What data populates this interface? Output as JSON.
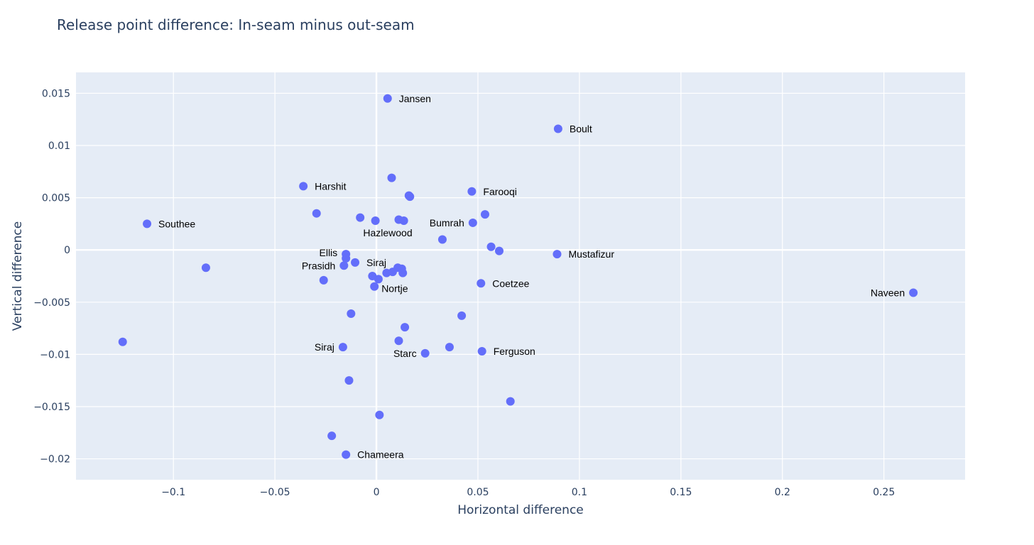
{
  "chart_data": {
    "type": "scatter",
    "title": "Release point difference: In-seam minus out-seam",
    "xlabel": "Horizontal difference",
    "ylabel": "Vertical difference",
    "xlim": [
      -0.148,
      0.29
    ],
    "ylim": [
      -0.022,
      0.017
    ],
    "x_ticks": [
      -0.1,
      -0.05,
      0,
      0.05,
      0.1,
      0.15,
      0.2,
      0.25
    ],
    "x_tick_labels": [
      "−0.1",
      "−0.05",
      "0",
      "0.05",
      "0.1",
      "0.15",
      "0.2",
      "0.25"
    ],
    "y_ticks": [
      0.015,
      0.01,
      0.005,
      0,
      -0.005,
      -0.01,
      -0.015,
      -0.02
    ],
    "y_tick_labels": [
      "0.015",
      "0.01",
      "0.005",
      "0",
      "−0.005",
      "−0.01",
      "−0.015",
      "−0.02"
    ],
    "grid": true,
    "colors": {
      "marker": "#636efa",
      "plot_bg": "#e5ecf6",
      "grid": "#ffffff",
      "text": "#2a3f5f"
    },
    "points": [
      {
        "x": 0.0055,
        "y": 0.0145,
        "label": "Jansen",
        "label_side": "right"
      },
      {
        "x": 0.0895,
        "y": 0.0116,
        "label": "Boult",
        "label_side": "right"
      },
      {
        "x": 0.0075,
        "y": 0.0069,
        "label": "",
        "label_side": "right"
      },
      {
        "x": -0.036,
        "y": 0.0061,
        "label": "Harshit",
        "label_side": "right"
      },
      {
        "x": 0.047,
        "y": 0.0056,
        "label": "Farooqi",
        "label_side": "right"
      },
      {
        "x": 0.016,
        "y": 0.0052,
        "label": "",
        "label_side": "right"
      },
      {
        "x": 0.0165,
        "y": 0.0051,
        "label": "",
        "label_side": "right"
      },
      {
        "x": -0.0295,
        "y": 0.0035,
        "label": "",
        "label_side": "right"
      },
      {
        "x": 0.0535,
        "y": 0.0034,
        "label": "",
        "label_side": "right"
      },
      {
        "x": -0.008,
        "y": 0.0031,
        "label": "",
        "label_side": "right"
      },
      {
        "x": -0.0005,
        "y": 0.0028,
        "label": "",
        "label_side": "right"
      },
      {
        "x": 0.011,
        "y": 0.0029,
        "label": "",
        "label_side": "right"
      },
      {
        "x": 0.0135,
        "y": 0.0028,
        "label": "Hazlewood",
        "label_side": "below-left"
      },
      {
        "x": -0.113,
        "y": 0.0025,
        "label": "Southee",
        "label_side": "right"
      },
      {
        "x": 0.0475,
        "y": 0.0026,
        "label": "Bumrah",
        "label_side": "left"
      },
      {
        "x": 0.0325,
        "y": 0.001,
        "label": "",
        "label_side": "right"
      },
      {
        "x": 0.0565,
        "y": 0.0003,
        "label": "",
        "label_side": "right"
      },
      {
        "x": 0.0605,
        "y": -0.0001,
        "label": "",
        "label_side": "right"
      },
      {
        "x": 0.089,
        "y": -0.0004,
        "label": "Mustafizur",
        "label_side": "right"
      },
      {
        "x": -0.015,
        "y": -0.0004,
        "label": "Ellis",
        "label_side": "left-up"
      },
      {
        "x": -0.015,
        "y": -0.0008,
        "label": "",
        "label_side": "right"
      },
      {
        "x": -0.0105,
        "y": -0.0012,
        "label": "Siraj",
        "label_side": "right"
      },
      {
        "x": -0.016,
        "y": -0.0015,
        "label": "Prasidh",
        "label_side": "left"
      },
      {
        "x": -0.084,
        "y": -0.0017,
        "label": "",
        "label_side": "right"
      },
      {
        "x": 0.0105,
        "y": -0.0017,
        "label": "",
        "label_side": "right"
      },
      {
        "x": 0.0125,
        "y": -0.0018,
        "label": "",
        "label_side": "right"
      },
      {
        "x": 0.005,
        "y": -0.0022,
        "label": "",
        "label_side": "right"
      },
      {
        "x": 0.008,
        "y": -0.0021,
        "label": "",
        "label_side": "right"
      },
      {
        "x": 0.013,
        "y": -0.0022,
        "label": "",
        "label_side": "right"
      },
      {
        "x": -0.002,
        "y": -0.0025,
        "label": "",
        "label_side": "right"
      },
      {
        "x": 0.001,
        "y": -0.0028,
        "label": "",
        "label_side": "right"
      },
      {
        "x": -0.026,
        "y": -0.0029,
        "label": "",
        "label_side": "right"
      },
      {
        "x": 0.0515,
        "y": -0.0032,
        "label": "Coetzee",
        "label_side": "right"
      },
      {
        "x": -0.001,
        "y": -0.0035,
        "label": "Nortje",
        "label_side": "below-right"
      },
      {
        "x": 0.2645,
        "y": -0.0041,
        "label": "Naveen",
        "label_side": "left"
      },
      {
        "x": -0.0125,
        "y": -0.0061,
        "label": "",
        "label_side": "right"
      },
      {
        "x": 0.042,
        "y": -0.0063,
        "label": "",
        "label_side": "right"
      },
      {
        "x": 0.014,
        "y": -0.0074,
        "label": "",
        "label_side": "right"
      },
      {
        "x": 0.011,
        "y": -0.0087,
        "label": "",
        "label_side": "right"
      },
      {
        "x": -0.125,
        "y": -0.0088,
        "label": "",
        "label_side": "right"
      },
      {
        "x": -0.0165,
        "y": -0.0093,
        "label": "Siraj",
        "label_side": "left"
      },
      {
        "x": 0.036,
        "y": -0.0093,
        "label": "",
        "label_side": "right"
      },
      {
        "x": 0.052,
        "y": -0.0097,
        "label": "Ferguson",
        "label_side": "right"
      },
      {
        "x": 0.024,
        "y": -0.0099,
        "label": "Starc",
        "label_side": "left"
      },
      {
        "x": -0.0135,
        "y": -0.0125,
        "label": "",
        "label_side": "right"
      },
      {
        "x": 0.066,
        "y": -0.0145,
        "label": "",
        "label_side": "right"
      },
      {
        "x": 0.0015,
        "y": -0.0158,
        "label": "",
        "label_side": "right"
      },
      {
        "x": -0.022,
        "y": -0.0178,
        "label": "",
        "label_side": "right"
      },
      {
        "x": -0.015,
        "y": -0.0196,
        "label": "Chameera",
        "label_side": "right"
      }
    ]
  }
}
